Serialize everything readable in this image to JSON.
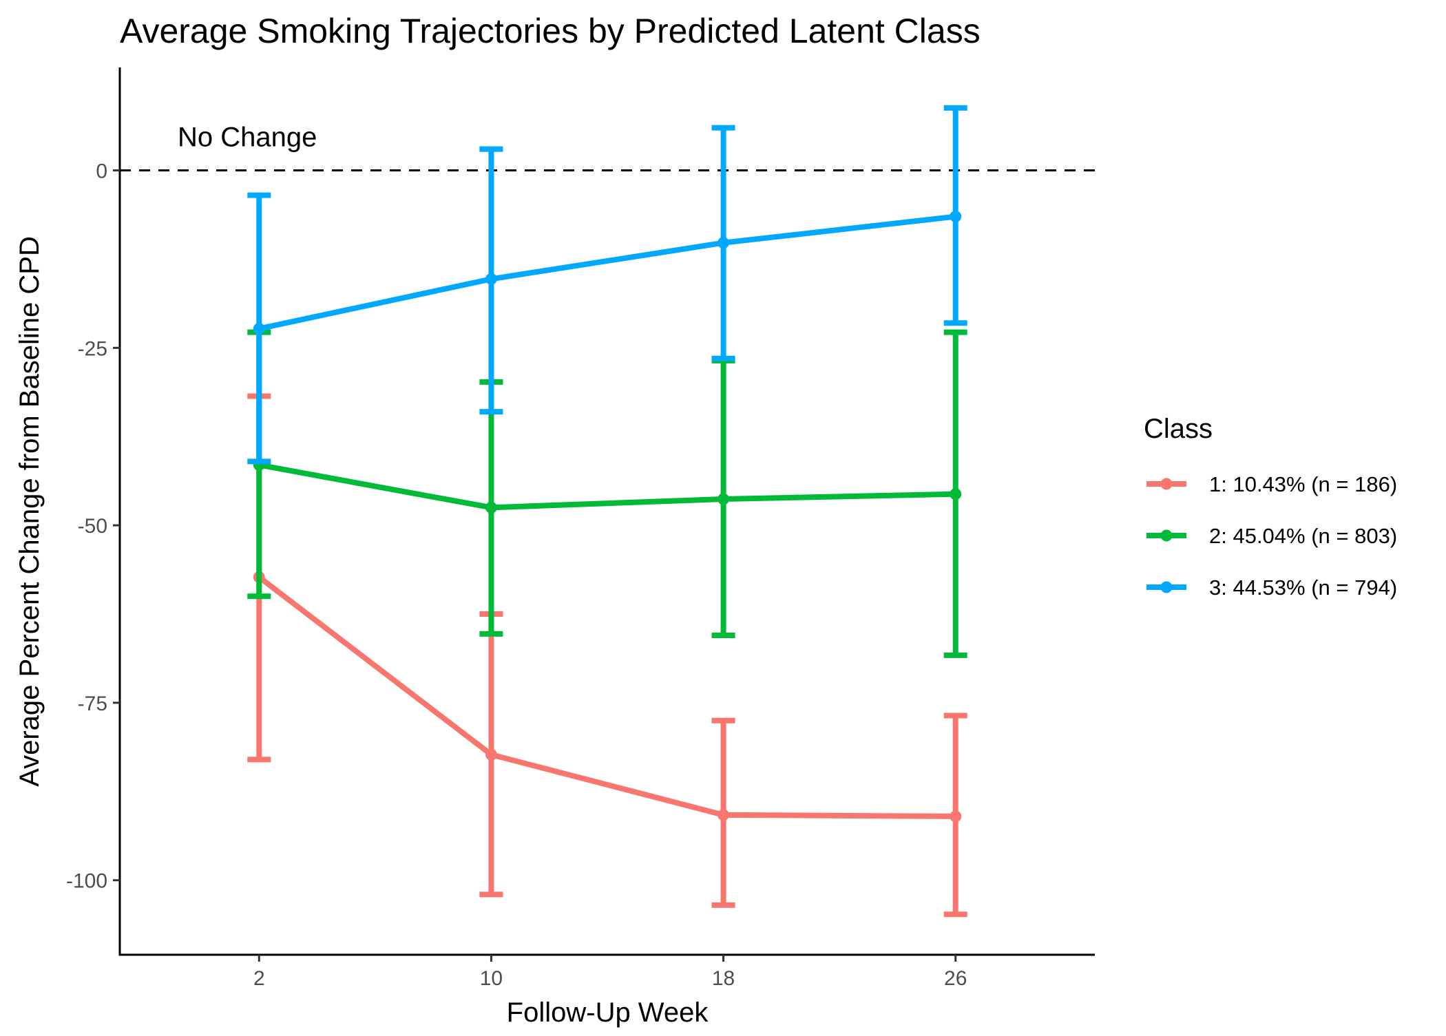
{
  "chart_data": {
    "type": "line",
    "title": "Average Smoking Trajectories by Predicted Latent Class",
    "xlabel": "Follow-Up Week",
    "ylabel": "Average Percent Change from Baseline CPD",
    "x": [
      2,
      10,
      18,
      26
    ],
    "xlim": [
      -2.8,
      30.8
    ],
    "ylim": [
      -110.5,
      14.5
    ],
    "yticks": [
      0,
      -25,
      -50,
      -75,
      -100
    ],
    "ytick_labels": [
      "0",
      "-25",
      "-50",
      "-75",
      "-100"
    ],
    "xticks": [
      2,
      10,
      18,
      26
    ],
    "xtick_labels": [
      "2",
      "10",
      "18",
      "26"
    ],
    "grid": false,
    "legend": {
      "title": "Class",
      "placement": "right"
    },
    "reference_line": {
      "y": 0,
      "style": "dashed",
      "label": "No Change",
      "color": "#000000"
    },
    "series": [
      {
        "name": "1: 10.43% (n = 186)",
        "color": "#F8766D",
        "values": [
          -57.3,
          -82.3,
          -90.8,
          -91.0
        ],
        "lower": [
          -83.0,
          -102.0,
          -103.5,
          -104.8
        ],
        "upper": [
          -31.8,
          -62.5,
          -77.5,
          -76.8
        ]
      },
      {
        "name": "2: 45.04% (n = 803)",
        "color": "#00BA38",
        "values": [
          -41.5,
          -47.5,
          -46.3,
          -45.6
        ],
        "lower": [
          -60.0,
          -65.3,
          -65.5,
          -68.3
        ],
        "upper": [
          -22.8,
          -29.8,
          -26.8,
          -22.8
        ]
      },
      {
        "name": "3: 44.53% (n = 794)",
        "color": "#00A9FF",
        "values": [
          -22.3,
          -15.3,
          -10.2,
          -6.5
        ],
        "lower": [
          -41.0,
          -34.0,
          -26.5,
          -21.5
        ],
        "upper": [
          -3.5,
          3.0,
          6.0,
          8.8
        ]
      }
    ]
  }
}
